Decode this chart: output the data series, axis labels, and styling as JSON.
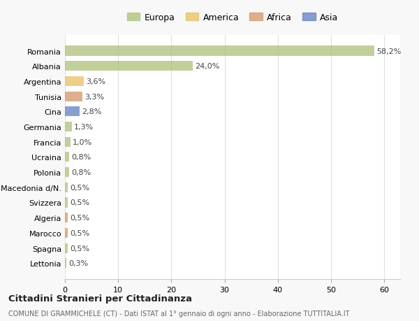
{
  "countries": [
    "Romania",
    "Albania",
    "Argentina",
    "Tunisia",
    "Cina",
    "Germania",
    "Francia",
    "Ucraina",
    "Polonia",
    "Macedonia d/N.",
    "Svizzera",
    "Algeria",
    "Marocco",
    "Spagna",
    "Lettonia"
  ],
  "values": [
    58.2,
    24.0,
    3.6,
    3.3,
    2.8,
    1.3,
    1.0,
    0.8,
    0.8,
    0.5,
    0.5,
    0.5,
    0.5,
    0.5,
    0.3
  ],
  "labels": [
    "58,2%",
    "24,0%",
    "3,6%",
    "3,3%",
    "2,8%",
    "1,3%",
    "1,0%",
    "0,8%",
    "0,8%",
    "0,5%",
    "0,5%",
    "0,5%",
    "0,5%",
    "0,5%",
    "0,3%"
  ],
  "colors": [
    "#adc178",
    "#adc178",
    "#e8c060",
    "#d4956a",
    "#6080c0",
    "#adc178",
    "#adc178",
    "#adc178",
    "#adc178",
    "#adc178",
    "#adc178",
    "#d4956a",
    "#d4956a",
    "#adc178",
    "#adc178"
  ],
  "legend_labels": [
    "Europa",
    "America",
    "Africa",
    "Asia"
  ],
  "legend_colors": [
    "#adc178",
    "#e8c060",
    "#d4956a",
    "#6080c0"
  ],
  "title": "Cittadini Stranieri per Cittadinanza",
  "subtitle": "COMUNE DI GRAMMICHELE (CT) - Dati ISTAT al 1° gennaio di ogni anno - Elaborazione TUTTITALIA.IT",
  "xlim": [
    0,
    63
  ],
  "xticks": [
    0,
    10,
    20,
    30,
    40,
    50,
    60
  ],
  "background_color": "#f8f8f8",
  "plot_bg_color": "#ffffff",
  "grid_color": "#e0e0e0",
  "bar_alpha": 0.75
}
